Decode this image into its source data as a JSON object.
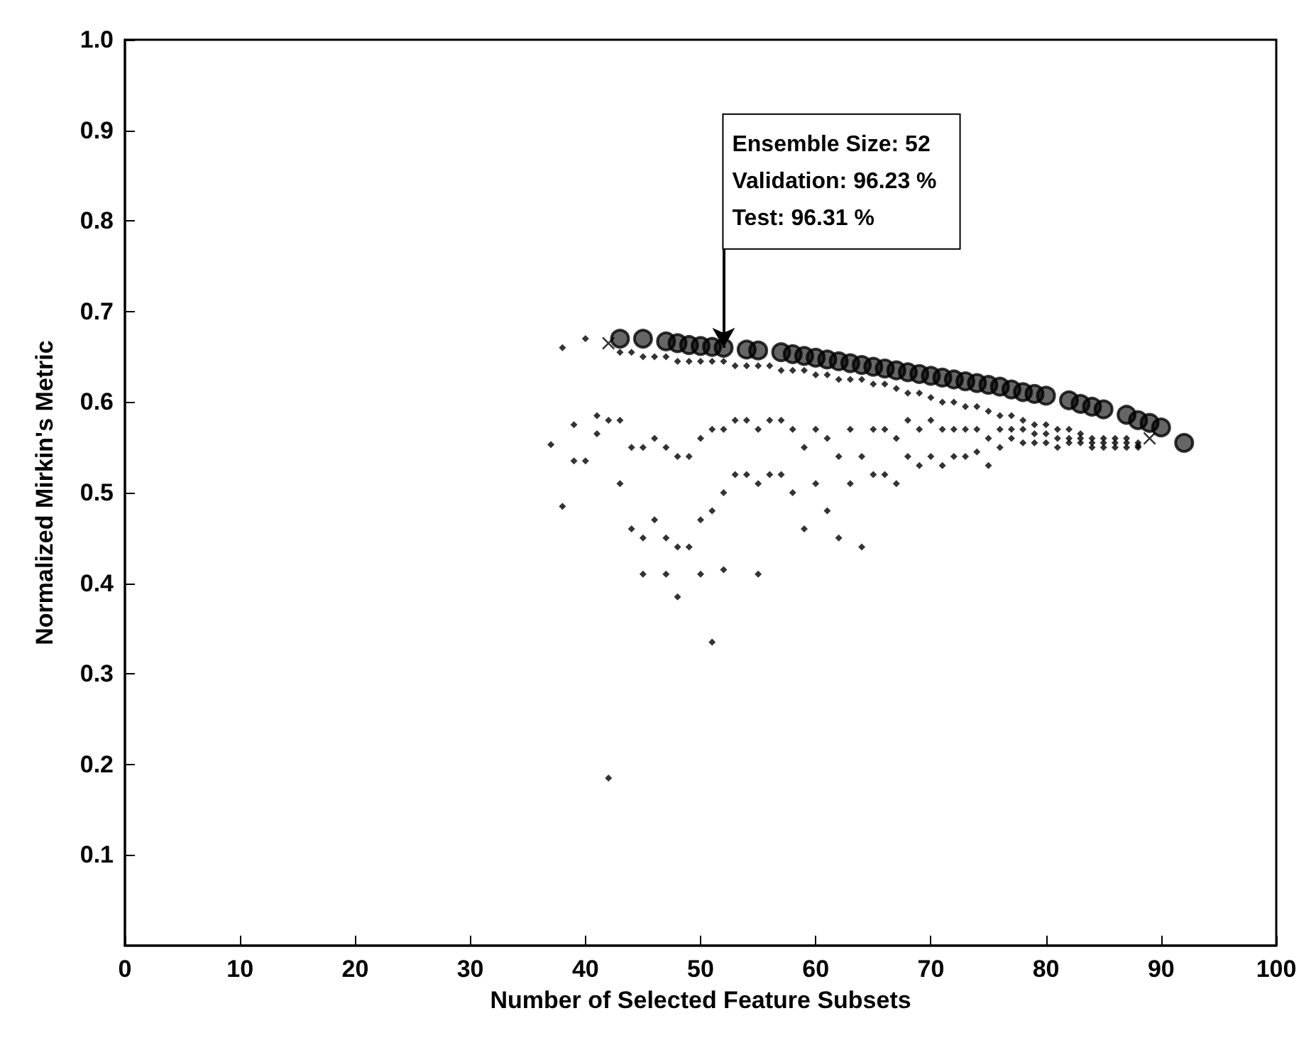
{
  "chart_data": {
    "type": "scatter",
    "xlabel": "Number of Selected Feature Subsets",
    "ylabel": "Normalized Mirkin's Metric",
    "xlim": [
      0,
      100
    ],
    "xticks": [
      0,
      10,
      20,
      30,
      40,
      50,
      60,
      70,
      80,
      90,
      100
    ],
    "ylim": [
      0,
      1
    ],
    "yticks": [
      0.1,
      0.2,
      0.3,
      0.4,
      0.5,
      0.6,
      0.7,
      0.8,
      0.9,
      {
        "value": 1,
        "label": "1.0"
      }
    ],
    "grid": false,
    "annotations": [
      {
        "text": "Ensemble Size: 52\nValidation: 96.23 %\nTest: 96.31 %",
        "x": 52,
        "y": 0.66
      }
    ],
    "series": [
      {
        "color": "#000000",
        "marker": "diamond",
        "x": [
          37,
          38,
          38,
          39,
          39,
          40,
          40,
          41,
          41,
          42,
          42,
          45,
          47,
          48,
          50,
          51,
          52,
          55,
          43,
          43,
          43,
          44,
          44,
          44,
          45,
          45,
          45,
          46,
          46,
          46,
          47,
          47,
          47,
          48,
          48,
          48,
          49,
          49,
          49,
          50,
          50,
          50,
          51,
          51,
          51,
          52,
          52,
          52,
          53,
          53,
          53,
          54,
          54,
          54,
          55,
          55,
          55,
          56,
          56,
          56,
          57,
          57,
          57,
          58,
          58,
          58,
          59,
          59,
          59,
          60,
          60,
          60,
          61,
          61,
          61,
          62,
          62,
          62,
          63,
          63,
          63,
          64,
          64,
          64,
          65,
          65,
          65,
          66,
          66,
          66,
          67,
          67,
          67,
          68,
          68,
          68,
          69,
          69,
          69,
          70,
          70,
          70,
          71,
          71,
          71,
          72,
          72,
          72,
          73,
          73,
          73,
          74,
          74,
          74,
          75,
          75,
          75,
          76,
          76,
          76,
          77,
          77,
          77,
          78,
          78,
          78,
          79,
          79,
          79,
          80,
          80,
          80,
          81,
          81,
          81,
          82,
          82,
          82,
          83,
          83,
          83,
          84,
          84,
          84,
          85,
          85,
          85,
          86,
          86,
          86,
          87,
          87,
          87,
          88,
          88,
          88
        ],
        "values": [
          0.553,
          0.66,
          0.485,
          0.575,
          0.535,
          0.67,
          0.535,
          0.585,
          0.565,
          0.58,
          0.185,
          0.41,
          0.41,
          0.385,
          0.41,
          0.335,
          0.415,
          0.41,
          0.655,
          0.58,
          0.51,
          0.655,
          0.55,
          0.46,
          0.65,
          0.55,
          0.45,
          0.65,
          0.56,
          0.47,
          0.65,
          0.55,
          0.45,
          0.645,
          0.54,
          0.44,
          0.645,
          0.54,
          0.44,
          0.645,
          0.56,
          0.47,
          0.645,
          0.57,
          0.48,
          0.645,
          0.57,
          0.5,
          0.64,
          0.58,
          0.52,
          0.64,
          0.58,
          0.52,
          0.64,
          0.57,
          0.51,
          0.64,
          0.58,
          0.52,
          0.635,
          0.58,
          0.52,
          0.635,
          0.57,
          0.5,
          0.635,
          0.55,
          0.46,
          0.63,
          0.57,
          0.51,
          0.63,
          0.56,
          0.48,
          0.625,
          0.54,
          0.45,
          0.625,
          0.57,
          0.51,
          0.625,
          0.54,
          0.44,
          0.62,
          0.57,
          0.52,
          0.62,
          0.57,
          0.52,
          0.615,
          0.56,
          0.51,
          0.61,
          0.58,
          0.54,
          0.61,
          0.57,
          0.53,
          0.605,
          0.58,
          0.54,
          0.6,
          0.57,
          0.53,
          0.6,
          0.57,
          0.54,
          0.595,
          0.57,
          0.54,
          0.595,
          0.57,
          0.545,
          0.59,
          0.56,
          0.53,
          0.585,
          0.57,
          0.55,
          0.585,
          0.57,
          0.56,
          0.58,
          0.57,
          0.555,
          0.575,
          0.565,
          0.555,
          0.575,
          0.565,
          0.555,
          0.57,
          0.56,
          0.55,
          0.57,
          0.56,
          0.555,
          0.565,
          0.56,
          0.555,
          0.56,
          0.555,
          0.55,
          0.56,
          0.555,
          0.55,
          0.56,
          0.555,
          0.55,
          0.56,
          0.555,
          0.55,
          0.555,
          0.552,
          0.55
        ]
      },
      {
        "color": "#000000",
        "marker": "circle",
        "x": [
          43,
          45,
          47,
          48,
          49,
          50,
          51,
          52,
          54,
          55,
          57,
          58,
          59,
          60,
          61,
          62,
          63,
          64,
          65,
          66,
          67,
          68,
          69,
          70,
          71,
          72,
          73,
          74,
          75,
          76,
          77,
          78,
          79,
          80,
          82,
          83,
          84,
          85,
          87,
          88,
          89,
          90,
          92
        ],
        "values": [
          0.67,
          0.67,
          0.667,
          0.665,
          0.663,
          0.662,
          0.661,
          0.66,
          0.658,
          0.657,
          0.655,
          0.653,
          0.651,
          0.649,
          0.647,
          0.645,
          0.643,
          0.641,
          0.639,
          0.637,
          0.635,
          0.633,
          0.631,
          0.629,
          0.627,
          0.625,
          0.623,
          0.621,
          0.619,
          0.617,
          0.614,
          0.611,
          0.609,
          0.607,
          0.602,
          0.598,
          0.595,
          0.592,
          0.586,
          0.58,
          0.577,
          0.572,
          0.555
        ]
      },
      {
        "color": "#000000",
        "marker": "cross",
        "x": [
          42,
          89
        ],
        "values": [
          0.665,
          0.56
        ]
      }
    ]
  }
}
